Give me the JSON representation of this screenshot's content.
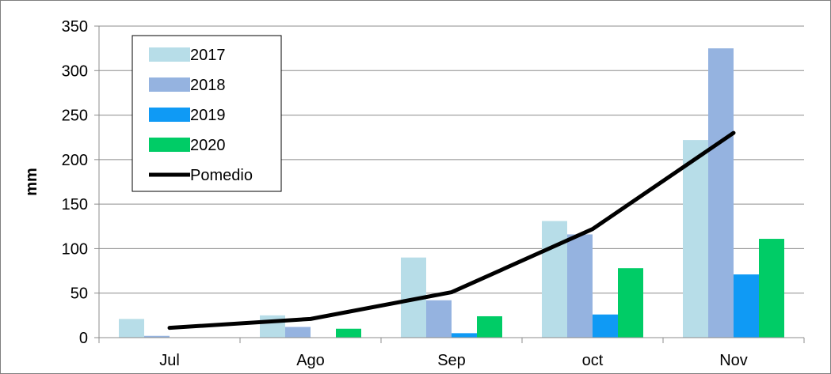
{
  "chart_data": {
    "type": "bar",
    "title": "",
    "xlabel": "",
    "ylabel": "mm",
    "ylim": [
      0,
      350
    ],
    "yticks": [
      0,
      50,
      100,
      150,
      200,
      250,
      300,
      350
    ],
    "categories": [
      "Jul",
      "Ago",
      "Sep",
      "oct",
      "Nov"
    ],
    "series": [
      {
        "name": "2017",
        "color": "#b7dde8",
        "values": [
          21,
          25,
          90,
          131,
          222
        ]
      },
      {
        "name": "2018",
        "color": "#95b3e0",
        "values": [
          2,
          12,
          42,
          116,
          325
        ]
      },
      {
        "name": "2019",
        "color": "#0f9af5",
        "values": [
          0,
          0,
          5,
          26,
          71
        ]
      },
      {
        "name": "2020",
        "color": "#00cc66",
        "values": [
          0,
          10,
          24,
          78,
          111
        ]
      }
    ],
    "line_series": {
      "name": "Pomedio",
      "color": "#000000",
      "values": [
        11,
        21,
        51,
        122,
        230
      ]
    },
    "legend_position": "top-left",
    "grid": true
  }
}
